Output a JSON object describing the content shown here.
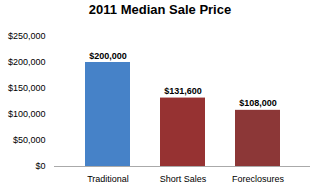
{
  "chart_data": {
    "type": "bar",
    "title": "2011 Median Sale Price",
    "categories": [
      "Traditional",
      "Short Sales",
      "Foreclosures"
    ],
    "values": [
      200000,
      131600,
      108000
    ],
    "value_labels": [
      "$200,000",
      "$131,600",
      "$108,000"
    ],
    "data_labels": true,
    "colors": [
      "#4682c8",
      "#963232",
      "#8c3737"
    ],
    "ylim": [
      0,
      250000
    ],
    "yticks": [
      {
        "value": 0,
        "label": "$0"
      },
      {
        "value": 50000,
        "label": "$50,000"
      },
      {
        "value": 100000,
        "label": "$100,000"
      },
      {
        "value": 150000,
        "label": "$150,000"
      },
      {
        "value": 200000,
        "label": "$200,000"
      },
      {
        "value": 250000,
        "label": "$250,000"
      }
    ],
    "grid": false
  }
}
